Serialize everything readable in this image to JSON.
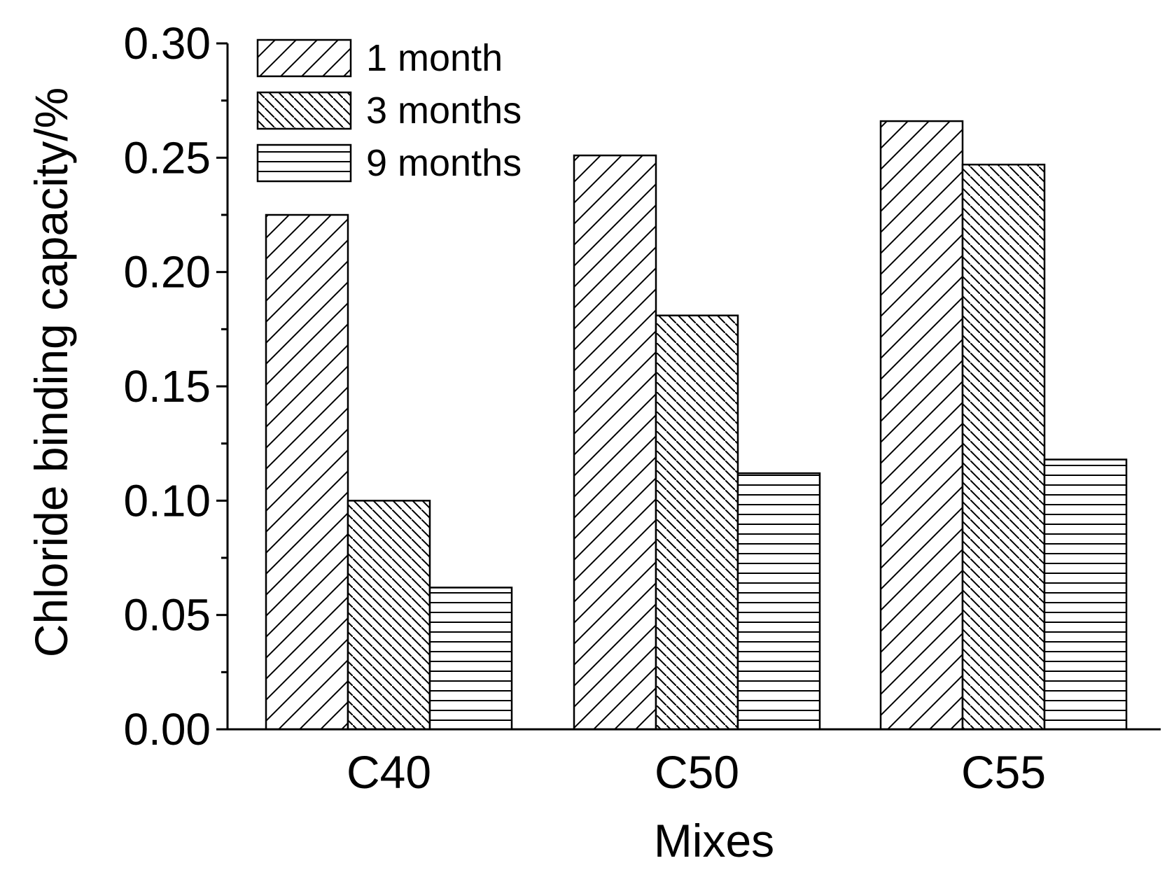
{
  "chart_data": {
    "type": "bar",
    "title": "",
    "xlabel": "Mixes",
    "ylabel": "Chloride binding capacity/%",
    "categories": [
      "C40",
      "C50",
      "C55"
    ],
    "series": [
      {
        "name": "1 month",
        "values": [
          0.225,
          0.251,
          0.266
        ],
        "pattern": "diagonal-up"
      },
      {
        "name": "3 months",
        "values": [
          0.1,
          0.181,
          0.247
        ],
        "pattern": "diagonal-down-dense"
      },
      {
        "name": "9 months",
        "values": [
          0.062,
          0.112,
          0.118
        ],
        "pattern": "horizontal"
      }
    ],
    "ylim": [
      0,
      0.3
    ],
    "yticks": [
      "0.00",
      "0.05",
      "0.10",
      "0.15",
      "0.20",
      "0.25",
      "0.30"
    ],
    "ytick_values": [
      0,
      0.05,
      0.1,
      0.15,
      0.2,
      0.25,
      0.3
    ],
    "grid": false,
    "legend_position": "top-left"
  },
  "colors": {
    "ink": "#000000",
    "fill": "#ffffff"
  }
}
